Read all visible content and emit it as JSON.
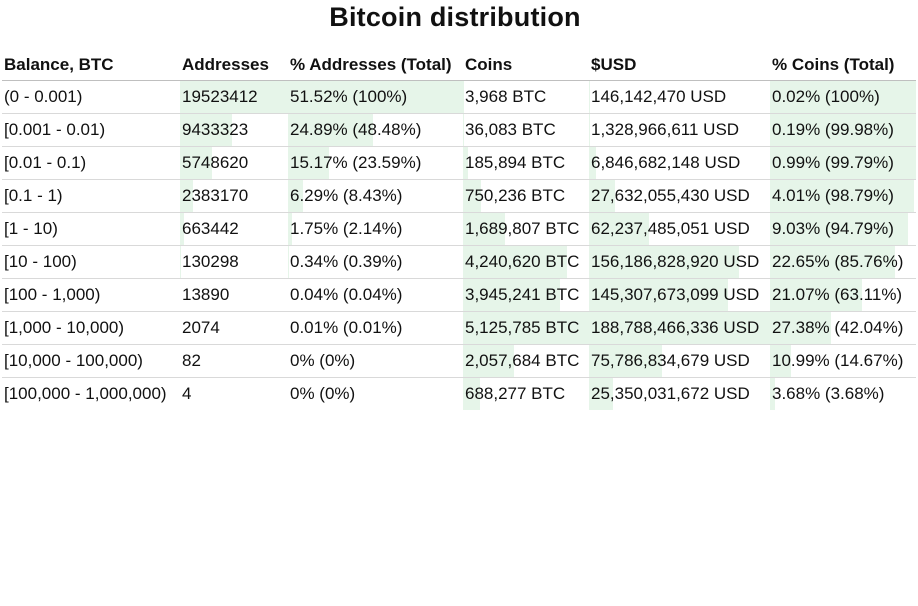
{
  "chart_data": {
    "type": "table",
    "title": "Bitcoin distribution",
    "columns": [
      "Balance, BTC",
      "Addresses",
      "% Addresses (Total)",
      "Coins",
      "$USD",
      "% Coins (Total)"
    ],
    "rows": [
      {
        "balance": "(0 - 0.001)",
        "addresses": "19523412",
        "pct_addresses": "51.52% (100%)",
        "coins": "3,968 BTC",
        "usd": "146,142,470 USD",
        "pct_coins": "0.02% (100%)"
      },
      {
        "balance": "[0.001 - 0.01)",
        "addresses": "9433323",
        "pct_addresses": "24.89% (48.48%)",
        "coins": "36,083 BTC",
        "usd": "1,328,966,611 USD",
        "pct_coins": "0.19% (99.98%)"
      },
      {
        "balance": "[0.01 - 0.1)",
        "addresses": "5748620",
        "pct_addresses": "15.17% (23.59%)",
        "coins": "185,894 BTC",
        "usd": "6,846,682,148 USD",
        "pct_coins": "0.99% (99.79%)"
      },
      {
        "balance": "[0.1 - 1)",
        "addresses": "2383170",
        "pct_addresses": "6.29% (8.43%)",
        "coins": "750,236 BTC",
        "usd": "27,632,055,430 USD",
        "pct_coins": "4.01% (98.79%)"
      },
      {
        "balance": "[1 - 10)",
        "addresses": "663442",
        "pct_addresses": "1.75% (2.14%)",
        "coins": "1,689,807 BTC",
        "usd": "62,237,485,051 USD",
        "pct_coins": "9.03% (94.79%)"
      },
      {
        "balance": "[10 - 100)",
        "addresses": "130298",
        "pct_addresses": "0.34% (0.39%)",
        "coins": "4,240,620 BTC",
        "usd": "156,186,828,920 USD",
        "pct_coins": "22.65% (85.76%)"
      },
      {
        "balance": "[100 - 1,000)",
        "addresses": "13890",
        "pct_addresses": "0.04% (0.04%)",
        "coins": "3,945,241 BTC",
        "usd": "145,307,673,099 USD",
        "pct_coins": "21.07% (63.11%)"
      },
      {
        "balance": "[1,000 - 10,000)",
        "addresses": "2074",
        "pct_addresses": "0.01% (0.01%)",
        "coins": "5,125,785 BTC",
        "usd": "188,788,466,336 USD",
        "pct_coins": "27.38% (42.04%)"
      },
      {
        "balance": "[10,000 - 100,000)",
        "addresses": "82",
        "pct_addresses": "0% (0%)",
        "coins": "2,057,684 BTC",
        "usd": "75,786,834,679 USD",
        "pct_coins": "10.99% (14.67%)"
      },
      {
        "balance": "[100,000 - 1,000,000)",
        "addresses": "4",
        "pct_addresses": "0% (0%)",
        "coins": "688,277 BTC",
        "usd": "25,350,031,672 USD",
        "pct_coins": "3.68% (3.68%)"
      }
    ],
    "bar_color": "#e6f5e9"
  }
}
